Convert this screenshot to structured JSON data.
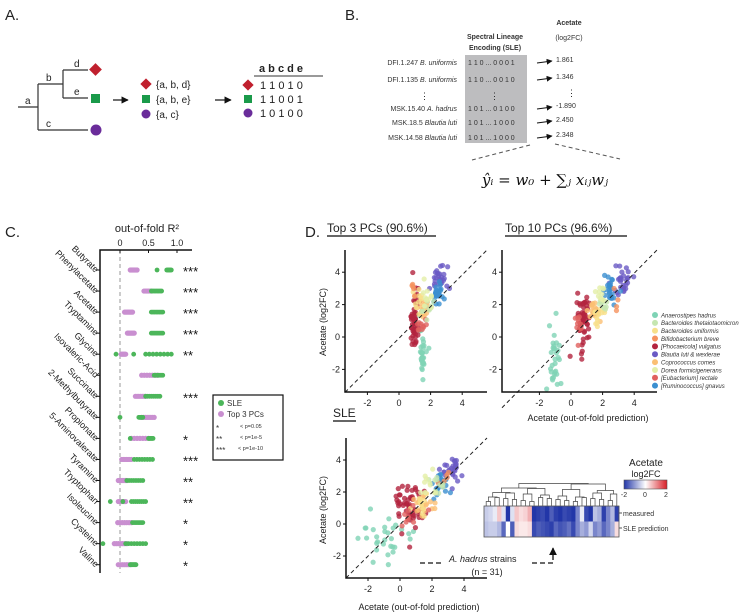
{
  "panel_labels": {
    "a": "A.",
    "b": "B.",
    "c": "C.",
    "d": "D."
  },
  "panel_a": {
    "nodes": {
      "a": "a",
      "b": "b",
      "c": "c",
      "d": "d",
      "e": "e"
    },
    "sets": [
      "{a, b, d}",
      "{a, b, e}",
      "{a, c}"
    ],
    "table_header": "a b c d e",
    "table_rows": [
      "1 1 0 1 0",
      "1 1 0 0 1",
      "1 0 1 0 0"
    ],
    "colors": {
      "diamond": "#c0202e",
      "square": "#1a9a4a",
      "circle": "#6a2c9a"
    }
  },
  "panel_b": {
    "header_sle_line1": "Spectral Lineage",
    "header_sle_line2": "Encoding (SLE)",
    "header_target_line1": "Acetate",
    "header_target_line2": "(log2FC)",
    "rows": [
      {
        "id": "DFI.1.247",
        "species": "B. uniformis",
        "code": "1 1 0 ... 0 0 0 1",
        "value": "1.861"
      },
      {
        "id": "DFI.1.135",
        "species": "B. uniformis",
        "code": "1 1 0 ... 0 0 1 0",
        "value": "1.346"
      },
      {
        "id": "MSK.15.40",
        "species": "A. hadrus",
        "code": "1 0 1 ... 0 1 0 0",
        "value": "-1.890"
      },
      {
        "id": "MSK.18.5",
        "species": "Blautia luti",
        "code": "1 0 1 ... 1 0 0 0",
        "value": "2.450"
      },
      {
        "id": "MSK.14.58",
        "species": "Blautia luti",
        "code": "1 0 1 ... 1 0 0 0",
        "value": "2.348"
      }
    ],
    "ellipsis": "⋮",
    "formula": "ŷᵢ = w₀ + ∑ⱼ xᵢⱼwⱼ"
  },
  "panel_c": {
    "title": "out-of-fold R²",
    "ticks": [
      {
        "v": 0,
        "label": "0"
      },
      {
        "v": 0.5,
        "label": "0.5"
      },
      {
        "v": 1.0,
        "label": "1.0"
      }
    ],
    "legend": {
      "sle": "SLE",
      "pc": "Top 3 PCs",
      "s1": "*",
      "s1_label": "< p=0.05",
      "s2": "**",
      "s2_label": "< p=1e-5",
      "s3": "***",
      "s3_label": "< p=1e-10"
    },
    "colors": {
      "sle": "#4cb65a",
      "pc": "#c98fd0"
    },
    "rows": [
      {
        "name": "Butyrate",
        "stars": "***",
        "sle": [
          0.82,
          0.9
        ],
        "sle_extra": [
          0.65
        ],
        "pc": [
          0.18,
          0.3
        ]
      },
      {
        "name": "Phenylacetate",
        "stars": "***",
        "sle": [
          0.55,
          0.73
        ],
        "sle_extra": [],
        "pc": [
          0.42,
          0.55
        ]
      },
      {
        "name": "Acetate",
        "stars": "***",
        "sle": [
          0.55,
          0.75
        ],
        "sle_extra": [],
        "pc": [
          0.08,
          0.22
        ]
      },
      {
        "name": "Tryptamine",
        "stars": "***",
        "sle": [
          0.55,
          0.75
        ],
        "sle_extra": [],
        "pc": [
          0.13,
          0.25
        ]
      },
      {
        "name": "Glycine",
        "stars": "**",
        "sle": [
          0.45,
          0.9
        ],
        "sle_extra": [
          -0.07,
          0.24
        ],
        "pc": [
          0.02,
          0.1
        ]
      },
      {
        "name": "Isovaleric-Acid",
        "stars": "",
        "sle": [
          0.6,
          0.75
        ],
        "sle_extra": [],
        "pc": [
          0.38,
          0.66
        ]
      },
      {
        "name": "Succinate",
        "stars": "***",
        "sle": [
          0.45,
          0.7
        ],
        "sle_extra": [],
        "pc": [
          0.27,
          0.45
        ]
      },
      {
        "name": "2-Methylbutyrate",
        "stars": "",
        "sle": [
          0.33,
          0.4
        ],
        "sle_extra": [
          0.0
        ],
        "pc": [
          0.38,
          0.6
        ]
      },
      {
        "name": "Propionate",
        "stars": "*",
        "sle": [
          0.5,
          0.58
        ],
        "sle_extra": [
          0.18
        ],
        "pc": [
          0.2,
          0.5
        ]
      },
      {
        "name": "5-Aminovalerate",
        "stars": "***",
        "sle": [
          0.25,
          0.57
        ],
        "sle_extra": [],
        "pc": [
          0.03,
          0.2
        ]
      },
      {
        "name": "Tyramine",
        "stars": "**",
        "sle": [
          0.12,
          0.4
        ],
        "sle_extra": [],
        "pc": [
          -0.03,
          0.12
        ]
      },
      {
        "name": "Tryptophan",
        "stars": "**",
        "sle": [
          0.2,
          0.45
        ],
        "sle_extra": [
          -0.17,
          0.05
        ],
        "pc": [
          -0.03,
          0.1
        ]
      },
      {
        "name": "Isoleucine",
        "stars": "*",
        "sle": [
          0.22,
          0.4
        ],
        "sle_extra": [],
        "pc": [
          -0.04,
          0.2
        ]
      },
      {
        "name": "Cysteine",
        "stars": "*",
        "sle": [
          0.1,
          0.45
        ],
        "sle_extra": [
          -0.3
        ],
        "pc": [
          -0.1,
          0.12
        ]
      },
      {
        "name": "Valine",
        "stars": "*",
        "sle": [
          0.18,
          0.28
        ],
        "sle_extra": [],
        "pc": [
          -0.03,
          0.18
        ]
      }
    ]
  },
  "panel_d": {
    "species": [
      {
        "name": "Anaerostipes hadrus",
        "color": "#7fd3b5"
      },
      {
        "name": "Bacteroides thetaiotaomicron",
        "color": "#c5e6b0"
      },
      {
        "name": "Bacteroides uniformis",
        "color": "#f7e08a"
      },
      {
        "name": "Bifidobacterium breve",
        "color": "#f5925e"
      },
      {
        "name": "[Phocaeicola] vulgatus",
        "color": "#b3243f"
      },
      {
        "name": "Blautia luti & wexlerae",
        "color": "#6a5ac4"
      },
      {
        "name": "Coprococcus comes",
        "color": "#fbbf73"
      },
      {
        "name": "Dorea formicigenerans",
        "color": "#e3efa8"
      },
      {
        "name": "[Eubacterium] rectale",
        "color": "#e0605e"
      },
      {
        "name": "[Ruminococcus] gnavus",
        "color": "#3b8fd0"
      }
    ],
    "x_ticks": [
      "-2",
      "0",
      "2",
      "4"
    ],
    "y_ticks": [
      "-2",
      "0",
      "2",
      "4"
    ],
    "ylabel": "Acetate (log2FC)",
    "xlabel": "Acetate (out-of-fold prediction)",
    "plots": [
      {
        "title": "Top 3 PCs (90.6%)",
        "clusters": [
          {
            "s": 0,
            "n": 30,
            "x": 1.5,
            "y": -1.0,
            "sx": 0.1,
            "sy": 0.8
          },
          {
            "s": 4,
            "n": 55,
            "x": 0.95,
            "y": 1.0,
            "sx": 0.15,
            "sy": 0.9
          },
          {
            "s": 5,
            "n": 30,
            "x": 2.5,
            "y": 3.6,
            "sx": 0.3,
            "sy": 0.4
          },
          {
            "s": 9,
            "n": 25,
            "x": 2.5,
            "y": 2.7,
            "sx": 0.2,
            "sy": 0.4
          },
          {
            "s": 6,
            "n": 20,
            "x": 1.6,
            "y": 1.7,
            "sx": 0.2,
            "sy": 0.3
          },
          {
            "s": 2,
            "n": 12,
            "x": 1.3,
            "y": 2.2,
            "sx": 0.2,
            "sy": 0.5
          },
          {
            "s": 3,
            "n": 5,
            "x": 0.9,
            "y": 3.0,
            "sx": 0.05,
            "sy": 0.2
          },
          {
            "s": 8,
            "n": 10,
            "x": 1.4,
            "y": 0.8,
            "sx": 0.2,
            "sy": 0.4
          },
          {
            "s": 1,
            "n": 10,
            "x": 1.9,
            "y": 1.8,
            "sx": 0.2,
            "sy": 0.3
          },
          {
            "s": 7,
            "n": 10,
            "x": 1.7,
            "y": 2.6,
            "sx": 0.2,
            "sy": 0.4
          }
        ]
      },
      {
        "title": "Top 10 PCs (96.6%)",
        "clusters": [
          {
            "s": 0,
            "n": 30,
            "x": -1.0,
            "y": -1.0,
            "sx": 0.2,
            "sy": 0.8
          },
          {
            "s": 4,
            "n": 55,
            "x": 0.8,
            "y": 1.0,
            "sx": 0.2,
            "sy": 0.9
          },
          {
            "s": 5,
            "n": 30,
            "x": 3.2,
            "y": 3.4,
            "sx": 0.4,
            "sy": 0.5
          },
          {
            "s": 9,
            "n": 25,
            "x": 2.5,
            "y": 2.9,
            "sx": 0.2,
            "sy": 0.4
          },
          {
            "s": 6,
            "n": 20,
            "x": 1.5,
            "y": 1.5,
            "sx": 0.2,
            "sy": 0.3
          },
          {
            "s": 2,
            "n": 12,
            "x": 1.7,
            "y": 1.4,
            "sx": 0.3,
            "sy": 0.4
          },
          {
            "s": 3,
            "n": 4,
            "x": 2.9,
            "y": 2.2,
            "sx": 0.1,
            "sy": 0.5
          },
          {
            "s": 8,
            "n": 10,
            "x": 0.5,
            "y": 0.7,
            "sx": 0.2,
            "sy": 0.3
          },
          {
            "s": 1,
            "n": 10,
            "x": 2.0,
            "y": 2.0,
            "sx": 0.2,
            "sy": 0.3
          },
          {
            "s": 7,
            "n": 10,
            "x": 1.9,
            "y": 2.6,
            "sx": 0.2,
            "sy": 0.4
          }
        ]
      },
      {
        "title": "SLE",
        "clusters": [
          {
            "s": 0,
            "n": 30,
            "x": -0.8,
            "y": -0.9,
            "sx": 0.8,
            "sy": 0.8
          },
          {
            "s": 4,
            "n": 55,
            "x": 0.6,
            "y": 1.1,
            "sx": 0.5,
            "sy": 0.8
          },
          {
            "s": 5,
            "n": 30,
            "x": 3.2,
            "y": 3.4,
            "sx": 0.3,
            "sy": 0.5
          },
          {
            "s": 9,
            "n": 25,
            "x": 2.5,
            "y": 2.6,
            "sx": 0.3,
            "sy": 0.4
          },
          {
            "s": 6,
            "n": 20,
            "x": 1.5,
            "y": 1.3,
            "sx": 0.3,
            "sy": 0.4
          },
          {
            "s": 2,
            "n": 12,
            "x": 1.4,
            "y": 1.1,
            "sx": 0.3,
            "sy": 0.4
          },
          {
            "s": 3,
            "n": 5,
            "x": 2.8,
            "y": 2.8,
            "sx": 0.2,
            "sy": 0.3
          },
          {
            "s": 8,
            "n": 10,
            "x": 0.7,
            "y": 0.4,
            "sx": 0.4,
            "sy": 0.5
          },
          {
            "s": 1,
            "n": 10,
            "x": 2.3,
            "y": 2.6,
            "sx": 0.3,
            "sy": 0.3
          },
          {
            "s": 7,
            "n": 10,
            "x": 1.9,
            "y": 2.4,
            "sx": 0.3,
            "sy": 0.5
          }
        ]
      }
    ],
    "annotation_species": "A. hadrus",
    "annotation_rest": " strains",
    "annotation_n": "(n = 31)",
    "heatmap": {
      "title_line1": "Acetate",
      "title_line2": "log2FC",
      "scale_ticks": [
        "-2",
        "0",
        "2"
      ],
      "row_labels": [
        "measured",
        "SLE prediction"
      ],
      "measured": [
        -0.5,
        -0.4,
        -0.2,
        0.5,
        -0.3,
        -2,
        -0.3,
        0.5,
        0.3,
        0.4,
        0.7,
        -2,
        -1.9,
        -1.8,
        -2,
        -1.6,
        -1.9,
        -2,
        -1.8,
        -1.9,
        -2,
        -1.2,
        -0.2,
        -1.8,
        -2,
        -0.6,
        -0.8,
        -1.9,
        -1.2,
        -0.7,
        -1.9
      ],
      "predicted": [
        -0.6,
        -0.5,
        -0.5,
        -0.7,
        -1.5,
        0.0,
        -1.6,
        0.3,
        0.2,
        0.2,
        0.3,
        -1.8,
        -1.6,
        -1.7,
        -1.8,
        -1.9,
        -1.5,
        -1.7,
        -1.6,
        -1.4,
        -1.8,
        -1.2,
        -0.8,
        -1.0,
        -0.4,
        -1.2,
        -1.0,
        -1.5,
        -1.2,
        -0.8,
        0.3
      ]
    }
  }
}
